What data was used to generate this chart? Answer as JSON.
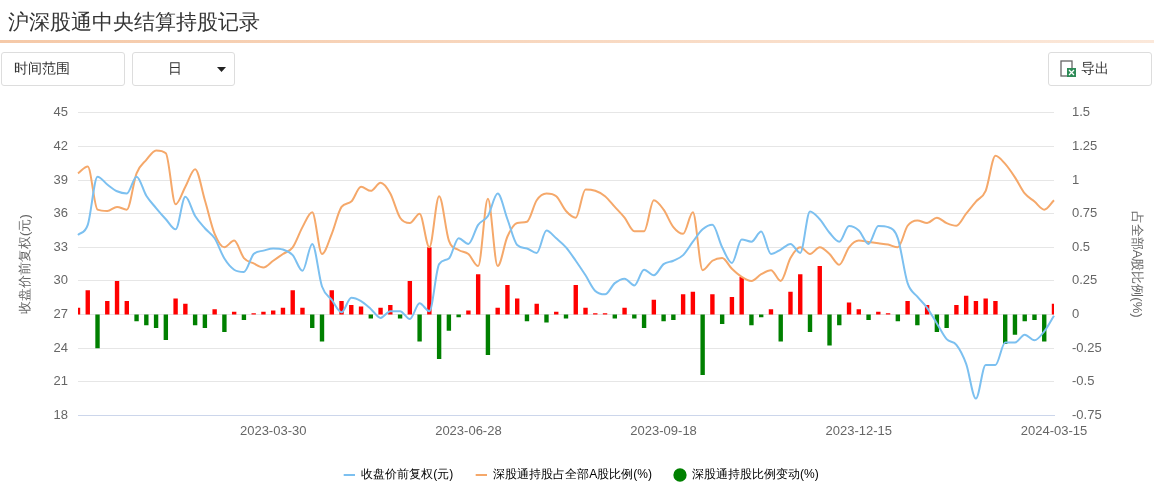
{
  "chart_data": {
    "type": "line",
    "title": "沪深股通中央结算持股记录",
    "annotations": [
      "时间范围",
      "日",
      "导出"
    ],
    "categories": [
      null,
      null,
      null,
      null,
      null,
      null,
      null,
      null,
      null,
      null,
      null,
      null,
      null,
      null,
      null,
      null,
      null,
      null,
      null,
      null,
      "2023-03-30",
      null,
      null,
      null,
      null,
      null,
      null,
      null,
      null,
      null,
      null,
      null,
      null,
      null,
      null,
      null,
      null,
      null,
      null,
      null,
      "2023-06-28",
      null,
      null,
      null,
      null,
      null,
      null,
      null,
      null,
      null,
      null,
      null,
      null,
      null,
      null,
      null,
      null,
      null,
      null,
      null,
      "2023-09-18",
      null,
      null,
      null,
      null,
      null,
      null,
      null,
      null,
      null,
      null,
      null,
      null,
      null,
      null,
      null,
      null,
      null,
      null,
      null,
      "2023-12-15",
      null,
      null,
      null,
      null,
      null,
      null,
      null,
      null,
      null,
      null,
      null,
      null,
      null,
      null,
      null,
      null,
      null,
      null,
      null,
      "2024-03-15"
    ],
    "ylabel": "收盘价前复权(元)",
    "y2label": "占全部A股比例(%)",
    "ylim": [
      18,
      45
    ],
    "yticks": [
      18,
      21,
      24,
      27,
      30,
      33,
      36,
      39,
      42,
      45
    ],
    "y2lim": [
      -0.75,
      1.5
    ],
    "y2ticks": [
      -0.75,
      -0.5,
      -0.25,
      0,
      0.25,
      0.5,
      0.75,
      1,
      1.25,
      1.5
    ],
    "grid": "y",
    "legend": "bottom",
    "marker": "none",
    "line_style": "solid",
    "series": [
      {
        "name": "收盘价前复权(元)",
        "color": "#7cc0f0",
        "values": [
          34.1,
          35,
          39.3,
          38.6,
          38,
          37.8,
          39.3,
          37.6,
          36.5,
          35.5,
          34.6,
          37.5,
          35.8,
          34.7,
          33.8,
          32,
          31,
          30.8,
          32.4,
          32.7,
          32.9,
          32.8,
          32.3,
          30.9,
          33.3,
          29.5,
          28.3,
          27.2,
          28.5,
          28.2,
          27.5,
          26.7,
          27.3,
          27.3,
          26.6,
          28,
          27.3,
          31.5,
          32,
          33.8,
          33.3,
          35,
          35.8,
          37.8,
          35.5,
          33.2,
          32.9,
          32.5,
          34.5,
          33.8,
          33,
          31.8,
          30.5,
          29.1,
          28.8,
          29.8,
          30.2,
          29.6,
          31,
          30.5,
          31.5,
          31.8,
          32.3,
          33.5,
          34.6,
          35,
          33,
          31.6,
          33.7,
          33.5,
          34.4,
          32.4,
          32.8,
          33.3,
          32.5,
          36.2,
          35.5,
          34.3,
          33.5,
          34.9,
          34.5,
          33.3,
          34.9,
          34.8,
          33.8,
          29.8,
          28.6,
          27.6,
          26.2,
          24.8,
          24.3,
          22.6,
          19.5,
          22.5,
          22.5,
          24.5,
          24.5,
          25.2,
          24.7,
          25.5,
          26.9
        ]
      },
      {
        "name": "深股通持股占全部A股比例(%)",
        "axis": "y2",
        "color": "#f5a86a",
        "values": [
          1.05,
          1.1,
          0.78,
          0.77,
          0.8,
          0.78,
          1.05,
          1.15,
          1.22,
          1.2,
          0.82,
          0.95,
          1.08,
          0.85,
          0.6,
          0.5,
          0.55,
          0.42,
          0.38,
          0.35,
          0.4,
          0.45,
          0.5,
          0.65,
          0.76,
          0.45,
          0.6,
          0.8,
          0.84,
          0.95,
          0.92,
          0.98,
          0.9,
          0.72,
          0.68,
          0.75,
          0.5,
          0.88,
          0.55,
          0.48,
          0.45,
          0.36,
          0.86,
          0.36,
          0.58,
          0.68,
          0.69,
          0.85,
          0.9,
          0.88,
          0.77,
          0.72,
          0.93,
          0.92,
          0.88,
          0.8,
          0.72,
          0.62,
          0.62,
          0.85,
          0.78,
          0.65,
          0.6,
          0.76,
          0.33,
          0.4,
          0.42,
          0.34,
          0.28,
          0.25,
          0.3,
          0.33,
          0.25,
          0.42,
          0.5,
          0.45,
          0.5,
          0.45,
          0.37,
          0.5,
          0.55,
          0.54,
          0.53,
          0.52,
          0.5,
          0.66,
          0.7,
          0.68,
          0.72,
          0.68,
          0.66,
          0.75,
          0.84,
          0.92,
          1.18,
          1.12,
          1.02,
          0.9,
          0.84,
          0.78,
          0.85
        ]
      },
      {
        "name": "深股通持股比例变动(%)",
        "type": "bar",
        "axis": "y2",
        "color": "#008000",
        "values": [
          0.05,
          0.18,
          -0.25,
          0.1,
          0.25,
          0.1,
          -0.05,
          -0.08,
          -0.1,
          -0.19,
          0.12,
          0.08,
          -0.08,
          -0.1,
          0.04,
          -0.13,
          0.02,
          -0.04,
          0.01,
          0.02,
          0.03,
          0.05,
          0.18,
          0.05,
          -0.1,
          -0.2,
          0.18,
          0.1,
          0.07,
          0.06,
          -0.03,
          0.05,
          0.07,
          -0.03,
          0.25,
          -0.2,
          0.5,
          -0.33,
          -0.12,
          -0.02,
          0.03,
          0.3,
          -0.3,
          0.05,
          0.22,
          0.12,
          -0.05,
          0.08,
          -0.06,
          0.02,
          -0.03,
          0.22,
          0.05,
          0.01,
          0.01,
          -0.03,
          0.05,
          -0.03,
          -0.1,
          0.11,
          -0.05,
          -0.04,
          0.15,
          0.17,
          -0.45,
          0.15,
          -0.07,
          0.13,
          0.28,
          -0.08,
          -0.02,
          0.04,
          -0.2,
          0.17,
          0.3,
          -0.13,
          0.36,
          -0.23,
          -0.08,
          0.09,
          0.04,
          -0.04,
          0.02,
          0.01,
          -0.05,
          0.1,
          -0.08,
          0.07,
          -0.13,
          -0.1,
          0.07,
          0.14,
          0.1,
          0.12,
          0.1,
          -0.22,
          -0.15,
          -0.05,
          -0.04,
          -0.2,
          0.08
        ],
        "colors": [
          "#ff0000",
          "#ff0000",
          "#008000",
          "#ff0000",
          "#ff0000",
          "#ff0000",
          "#008000",
          "#008000",
          "#008000",
          "#008000",
          "#ff0000",
          "#ff0000",
          "#008000",
          "#008000",
          "#ff0000",
          "#008000",
          "#ff0000",
          "#008000",
          "#ff0000",
          "#ff0000",
          "#ff0000",
          "#ff0000",
          "#ff0000",
          "#ff0000",
          "#008000",
          "#008000",
          "#ff0000",
          "#ff0000",
          "#ff0000",
          "#ff0000",
          "#008000",
          "#ff0000",
          "#ff0000",
          "#008000",
          "#ff0000",
          "#008000",
          "#ff0000",
          "#008000",
          "#008000",
          "#008000",
          "#ff0000",
          "#ff0000",
          "#008000",
          "#ff0000",
          "#ff0000",
          "#ff0000",
          "#008000",
          "#ff0000",
          "#008000",
          "#ff0000",
          "#008000",
          "#ff0000",
          "#ff0000",
          "#ff0000",
          "#ff0000",
          "#008000",
          "#ff0000",
          "#008000",
          "#008000",
          "#ff0000",
          "#008000",
          "#008000",
          "#ff0000",
          "#ff0000",
          "#008000",
          "#ff0000",
          "#008000",
          "#ff0000",
          "#ff0000",
          "#008000",
          "#008000",
          "#ff0000",
          "#008000",
          "#ff0000",
          "#ff0000",
          "#008000",
          "#ff0000",
          "#008000",
          "#008000",
          "#ff0000",
          "#ff0000",
          "#008000",
          "#ff0000",
          "#ff0000",
          "#008000",
          "#ff0000",
          "#008000",
          "#ff0000",
          "#008000",
          "#008000",
          "#ff0000",
          "#ff0000",
          "#ff0000",
          "#ff0000",
          "#ff0000",
          "#008000",
          "#008000",
          "#008000",
          "#008000",
          "#008000",
          "#ff0000"
        ]
      }
    ]
  }
}
